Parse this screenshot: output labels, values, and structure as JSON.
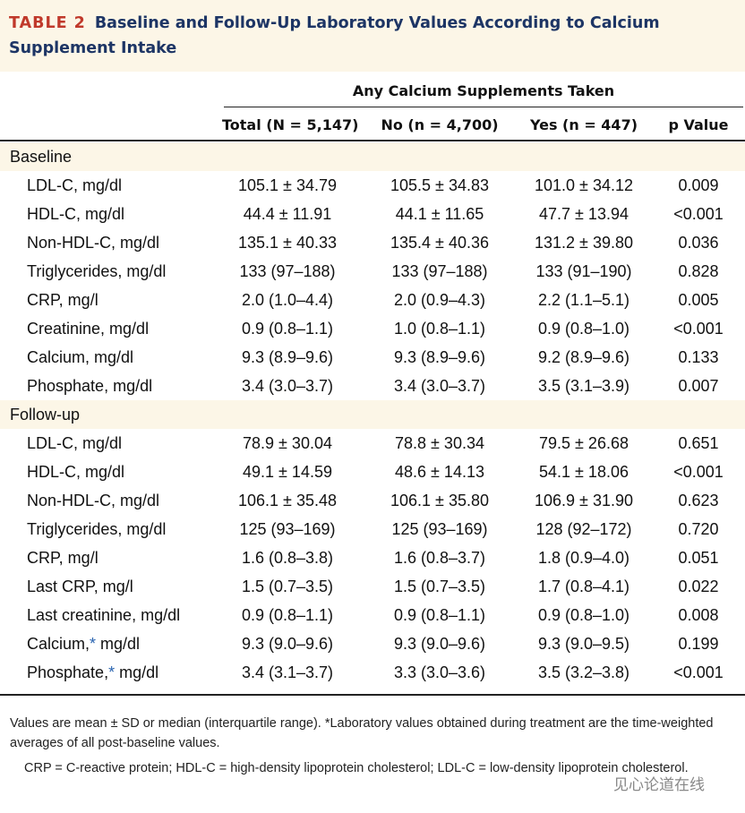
{
  "header": {
    "label": "TABLE 2",
    "title": "Baseline and Follow-Up Laboratory Values According to Calcium Supplement Intake"
  },
  "table": {
    "group_header": "Any Calcium Supplements Taken",
    "columns": [
      "Total (N = 5,147)",
      "No (n = 4,700)",
      "Yes (n = 447)",
      "p Value"
    ],
    "sections": [
      {
        "title": "Baseline",
        "rows": [
          {
            "label": "LDL-C, mg/dl",
            "values": [
              "105.1 ± 34.79",
              "105.5 ± 34.83",
              "101.0 ± 34.12",
              "0.009"
            ]
          },
          {
            "label": "HDL-C, mg/dl",
            "values": [
              "44.4 ± 11.91",
              "44.1 ± 11.65",
              "47.7 ± 13.94",
              "<0.001"
            ]
          },
          {
            "label": "Non-HDL-C, mg/dl",
            "values": [
              "135.1 ± 40.33",
              "135.4 ± 40.36",
              "131.2 ± 39.80",
              "0.036"
            ]
          },
          {
            "label": "Triglycerides, mg/dl",
            "values": [
              "133 (97–188)",
              "133 (97–188)",
              "133 (91–190)",
              "0.828"
            ]
          },
          {
            "label": "CRP, mg/l",
            "values": [
              "2.0 (1.0–4.4)",
              "2.0 (0.9–4.3)",
              "2.2 (1.1–5.1)",
              "0.005"
            ]
          },
          {
            "label": "Creatinine, mg/dl",
            "values": [
              "0.9 (0.8–1.1)",
              "1.0 (0.8–1.1)",
              "0.9 (0.8–1.0)",
              "<0.001"
            ]
          },
          {
            "label": "Calcium, mg/dl",
            "values": [
              "9.3 (8.9–9.6)",
              "9.3 (8.9–9.6)",
              "9.2 (8.9–9.6)",
              "0.133"
            ]
          },
          {
            "label": "Phosphate, mg/dl",
            "values": [
              "3.4 (3.0–3.7)",
              "3.4 (3.0–3.7)",
              "3.5 (3.1–3.9)",
              "0.007"
            ]
          }
        ]
      },
      {
        "title": "Follow-up",
        "rows": [
          {
            "label": "LDL-C, mg/dl",
            "values": [
              "78.9 ± 30.04",
              "78.8 ± 30.34",
              "79.5 ± 26.68",
              "0.651"
            ]
          },
          {
            "label": "HDL-C, mg/dl",
            "values": [
              "49.1 ± 14.59",
              "48.6 ± 14.13",
              "54.1 ± 18.06",
              "<0.001"
            ]
          },
          {
            "label": "Non-HDL-C, mg/dl",
            "values": [
              "106.1 ± 35.48",
              "106.1 ± 35.80",
              "106.9 ± 31.90",
              "0.623"
            ]
          },
          {
            "label": "Triglycerides, mg/dl",
            "values": [
              "125 (93–169)",
              "125 (93–169)",
              "128 (92–172)",
              "0.720"
            ]
          },
          {
            "label": "CRP, mg/l",
            "values": [
              "1.6 (0.8–3.8)",
              "1.6 (0.8–3.7)",
              "1.8 (0.9–4.0)",
              "0.051"
            ]
          },
          {
            "label": "Last CRP, mg/l",
            "values": [
              "1.5 (0.7–3.5)",
              "1.5 (0.7–3.5)",
              "1.7 (0.8–4.1)",
              "0.022"
            ]
          },
          {
            "label": "Last creatinine, mg/dl",
            "values": [
              "0.9 (0.8–1.1)",
              "0.9 (0.8–1.1)",
              "0.9 (0.8–1.0)",
              "0.008"
            ]
          },
          {
            "label": [
              "Calcium,",
              "*",
              "mg/dl"
            ],
            "values": [
              "9.3 (9.0–9.6)",
              "9.3 (9.0–9.6)",
              "9.3 (9.0–9.5)",
              "0.199"
            ]
          },
          {
            "label": [
              "Phosphate,",
              "*",
              "mg/dl"
            ],
            "values": [
              "3.4 (3.1–3.7)",
              "3.3 (3.0–3.6)",
              "3.5 (3.2–3.8)",
              "<0.001"
            ]
          }
        ]
      }
    ]
  },
  "footnotes": [
    "Values are mean ± SD or median (interquartile range). *Laboratory values obtained during treatment are the time-weighted averages of all post-baseline values.",
    "CRP = C-reactive protein; HDL-C = high-density lipoprotein cholesterol; LDL-C = low-density lipoprotein cholesterol."
  ],
  "watermark": "见心论道在线"
}
